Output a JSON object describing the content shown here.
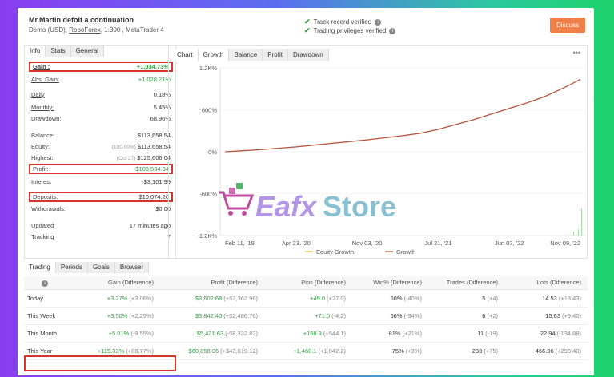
{
  "header": {
    "title": "Mr.Martin defolt a continuation",
    "account_type": "Demo (USD),",
    "broker": "RoboForex",
    "leverage": ", 1:300 , MetaTrader 4",
    "track_record": "Track record verified",
    "trading_privileges": "Trading privileges verified",
    "discuss_label": "Discuss"
  },
  "info_tabs": [
    "Info",
    "Stats",
    "General"
  ],
  "stats": {
    "gain_label": "Gain :",
    "gain_value": "+1,034.73%",
    "abs_gain_label": "Abs. Gain:",
    "abs_gain_value": "+1,028.21%",
    "daily_label": "Daily",
    "daily_value": "0.18%",
    "monthly_label": "Monthly:",
    "monthly_value": "5.45%",
    "drawdown_label": "Drawdown:",
    "drawdown_value": "68.96%",
    "balance_label": "Balance:",
    "balance_value": "$113,658.54",
    "equity_label": "Equity:",
    "equity_pre": "(100.00%)",
    "equity_value": "$113,658.54",
    "highest_label": "Highest:",
    "highest_pre": "(Oct 27)",
    "highest_value": "$125,606.04",
    "profit_label": "Profit:",
    "profit_value": "$103,584.34",
    "interest_label": "Interest",
    "interest_value": "-$3,101.99",
    "deposits_label": "Deposits:",
    "deposits_value": "$10,074.20",
    "withdrawals_label": "Withdrawals:",
    "withdrawals_value": "$0.00",
    "updated_label": "Updated",
    "updated_value": "17 minutes ago",
    "tracking_label": "Tracking",
    "tracking_value": "7"
  },
  "chart_tabs": [
    "Chart",
    "Growth",
    "Balance",
    "Profit",
    "Drawdown"
  ],
  "watermark": {
    "left": "Eafx",
    "right": "Store"
  },
  "chart_data": {
    "type": "line",
    "yticks": [
      "1.2K%",
      "600%",
      "0%",
      "-600%",
      "-1.2K%"
    ],
    "ytick_values": [
      1200,
      600,
      0,
      -600,
      -1200
    ],
    "ylim": [
      -1200,
      1200
    ],
    "xticks": [
      "Feb 11, '19",
      "Apr 23, '20",
      "Nov 03, '20",
      "Jul 21, '21",
      "Jun 07, '22",
      "Nov 09, '22"
    ],
    "xtick_pos": [
      0,
      0.2,
      0.4,
      0.6,
      0.8,
      1.0
    ],
    "series": [
      {
        "name": "Growth",
        "color": "#b5533c",
        "x": [
          0,
          0.05,
          0.1,
          0.15,
          0.2,
          0.25,
          0.3,
          0.35,
          0.4,
          0.45,
          0.5,
          0.55,
          0.6,
          0.65,
          0.7,
          0.75,
          0.8,
          0.85,
          0.9,
          0.93,
          0.96,
          1.0
        ],
        "y": [
          0,
          15,
          30,
          50,
          70,
          95,
          120,
          145,
          170,
          200,
          230,
          265,
          320,
          390,
          460,
          540,
          620,
          700,
          790,
          860,
          930,
          1035
        ]
      }
    ],
    "legend": [
      "Equity Growth",
      "Growth"
    ],
    "legend_colors": [
      "#e6c23a",
      "#b5533c"
    ]
  },
  "periods_tabs": [
    "Trading",
    "Periods",
    "Goals",
    "Browser"
  ],
  "table": {
    "headers": [
      "Gain (Difference)",
      "Profit (Difference)",
      "Pips (Difference)",
      "Win% (Difference)",
      "Trades (Difference)",
      "Lots (Difference)"
    ],
    "rows": [
      {
        "period": "Today",
        "gain": "+3.27%",
        "gain_diff": "(+3.06%)",
        "profit": "$3,602.68",
        "profit_diff": "(+$3,362.96)",
        "pips": "+49.0",
        "pips_diff": "(+27.0)",
        "win": "60%",
        "win_diff": "(-40%)",
        "trades": "5",
        "trades_diff": "(+4)",
        "lots": "14.53",
        "lots_diff": "(+13.43)"
      },
      {
        "period": "This Week",
        "gain": "+3.50%",
        "gain_diff": "(+2.25%)",
        "profit": "$3,842.40",
        "profit_diff": "(+$2,486.76)",
        "pips": "+71.0",
        "pips_diff": "(-4.2)",
        "win": "66%",
        "win_diff": "(-34%)",
        "trades": "6",
        "trades_diff": "(+2)",
        "lots": "15.63",
        "lots_diff": "(+9.40)"
      },
      {
        "period": "This Month",
        "gain": "+5.01%",
        "gain_diff": "(-9.55%)",
        "profit": "$5,421.63",
        "profit_diff": "(-$8,332.82)",
        "pips": "+168.3",
        "pips_diff": "(+544.1)",
        "win": "81%",
        "win_diff": "(+21%)",
        "trades": "11",
        "trades_diff": "(-19)",
        "lots": "22.94",
        "lots_diff": "(-134.88)"
      },
      {
        "period": "This Year",
        "gain": "+115.33%",
        "gain_diff": "(+66.77%)",
        "profit": "$60,858.05",
        "profit_diff": "(+$43,619.12)",
        "pips": "+1,460.1",
        "pips_diff": "(+1,042.2)",
        "win": "75%",
        "win_diff": "(+3%)",
        "trades": "233",
        "trades_diff": "(+75)",
        "lots": "466.96",
        "lots_diff": "(+293.40)"
      }
    ]
  }
}
